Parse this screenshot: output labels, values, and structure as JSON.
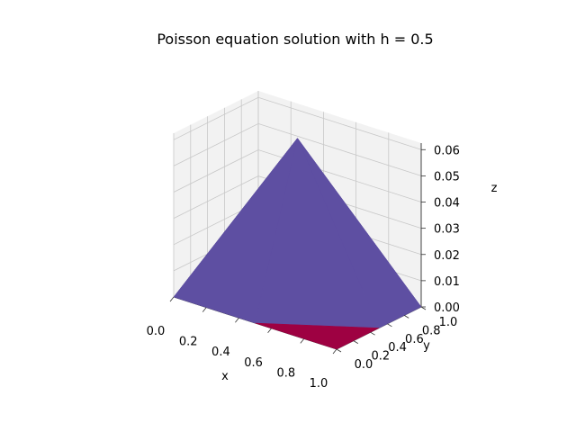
{
  "chart_data": {
    "type": "surface3d",
    "title": "Poisson equation solution with h = 0.5",
    "xlabel": "x",
    "ylabel": "y",
    "zlabel": "z",
    "xlim": [
      0,
      1
    ],
    "ylim": [
      0,
      1
    ],
    "zlim": [
      0,
      0.0625
    ],
    "x_ticks": [
      "0.0",
      "0.2",
      "0.4",
      "0.6",
      "0.8",
      "1.0"
    ],
    "y_ticks": [
      "0.0",
      "0.2",
      "0.4",
      "0.6",
      "0.8",
      "1.0"
    ],
    "z_ticks": [
      "0.00",
      "0.01",
      "0.02",
      "0.03",
      "0.04",
      "0.05",
      "0.06"
    ],
    "grid_x": [
      0,
      0.5,
      1
    ],
    "grid_y": [
      0,
      0.5,
      1
    ],
    "z_values": [
      [
        0,
        0,
        0
      ],
      [
        0,
        0.0625,
        0
      ],
      [
        0,
        0,
        0
      ]
    ],
    "grid": true,
    "colors": {
      "low": "#9e0142",
      "high": "#5e4fa2",
      "pane": "#f2f2f2",
      "gridline": "#c8c8c8"
    }
  }
}
